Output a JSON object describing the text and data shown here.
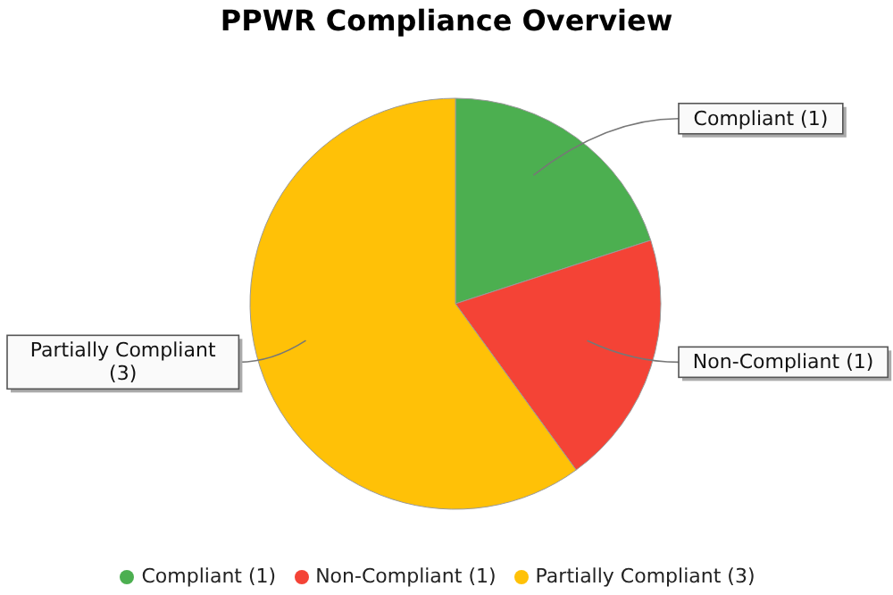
{
  "chart_data": {
    "type": "pie",
    "title": "PPWR Compliance Overview",
    "categories": [
      "Compliant (1)",
      "Non-Compliant (1)",
      "Partially Compliant (3)"
    ],
    "values": [
      1,
      1,
      3
    ],
    "colors": [
      "#4caf50",
      "#f44336",
      "#ffc107"
    ],
    "legend": "bottom"
  }
}
